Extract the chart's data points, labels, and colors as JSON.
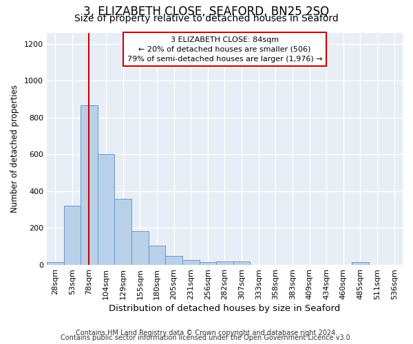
{
  "title": "3, ELIZABETH CLOSE, SEAFORD, BN25 2SQ",
  "subtitle": "Size of property relative to detached houses in Seaford",
  "xlabel": "Distribution of detached houses by size in Seaford",
  "ylabel": "Number of detached properties",
  "footnote1": "Contains HM Land Registry data © Crown copyright and database right 2024.",
  "footnote2": "Contains public sector information licensed under the Open Government Licence v3.0.",
  "bin_labels": [
    "28sqm",
    "53sqm",
    "78sqm",
    "104sqm",
    "129sqm",
    "155sqm",
    "180sqm",
    "205sqm",
    "231sqm",
    "256sqm",
    "282sqm",
    "307sqm",
    "333sqm",
    "358sqm",
    "383sqm",
    "409sqm",
    "434sqm",
    "460sqm",
    "485sqm",
    "511sqm",
    "536sqm"
  ],
  "bar_values": [
    15,
    320,
    865,
    600,
    360,
    185,
    105,
    50,
    25,
    15,
    20,
    20,
    0,
    0,
    0,
    0,
    0,
    0,
    15,
    0,
    0
  ],
  "bar_color": "#b8d0e8",
  "bar_edge_color": "#6699cc",
  "bar_edge_width": 0.7,
  "red_line_index": 2,
  "red_line_color": "#cc0000",
  "annotation_line1": "3 ELIZABETH CLOSE: 84sqm",
  "annotation_line2": "← 20% of detached houses are smaller (506)",
  "annotation_line3": "79% of semi-detached houses are larger (1,976) →",
  "annotation_box_color": "#ffffff",
  "annotation_box_edge": "#cc0000",
  "ylim": [
    0,
    1260
  ],
  "yticks": [
    0,
    200,
    400,
    600,
    800,
    1000,
    1200
  ],
  "background_color": "#e8eef5",
  "grid_color": "#ffffff",
  "fig_bg_color": "#ffffff",
  "title_fontsize": 12,
  "subtitle_fontsize": 10,
  "xlabel_fontsize": 9.5,
  "ylabel_fontsize": 8.5,
  "tick_fontsize": 8,
  "annotation_fontsize": 8,
  "footnote_fontsize": 7
}
